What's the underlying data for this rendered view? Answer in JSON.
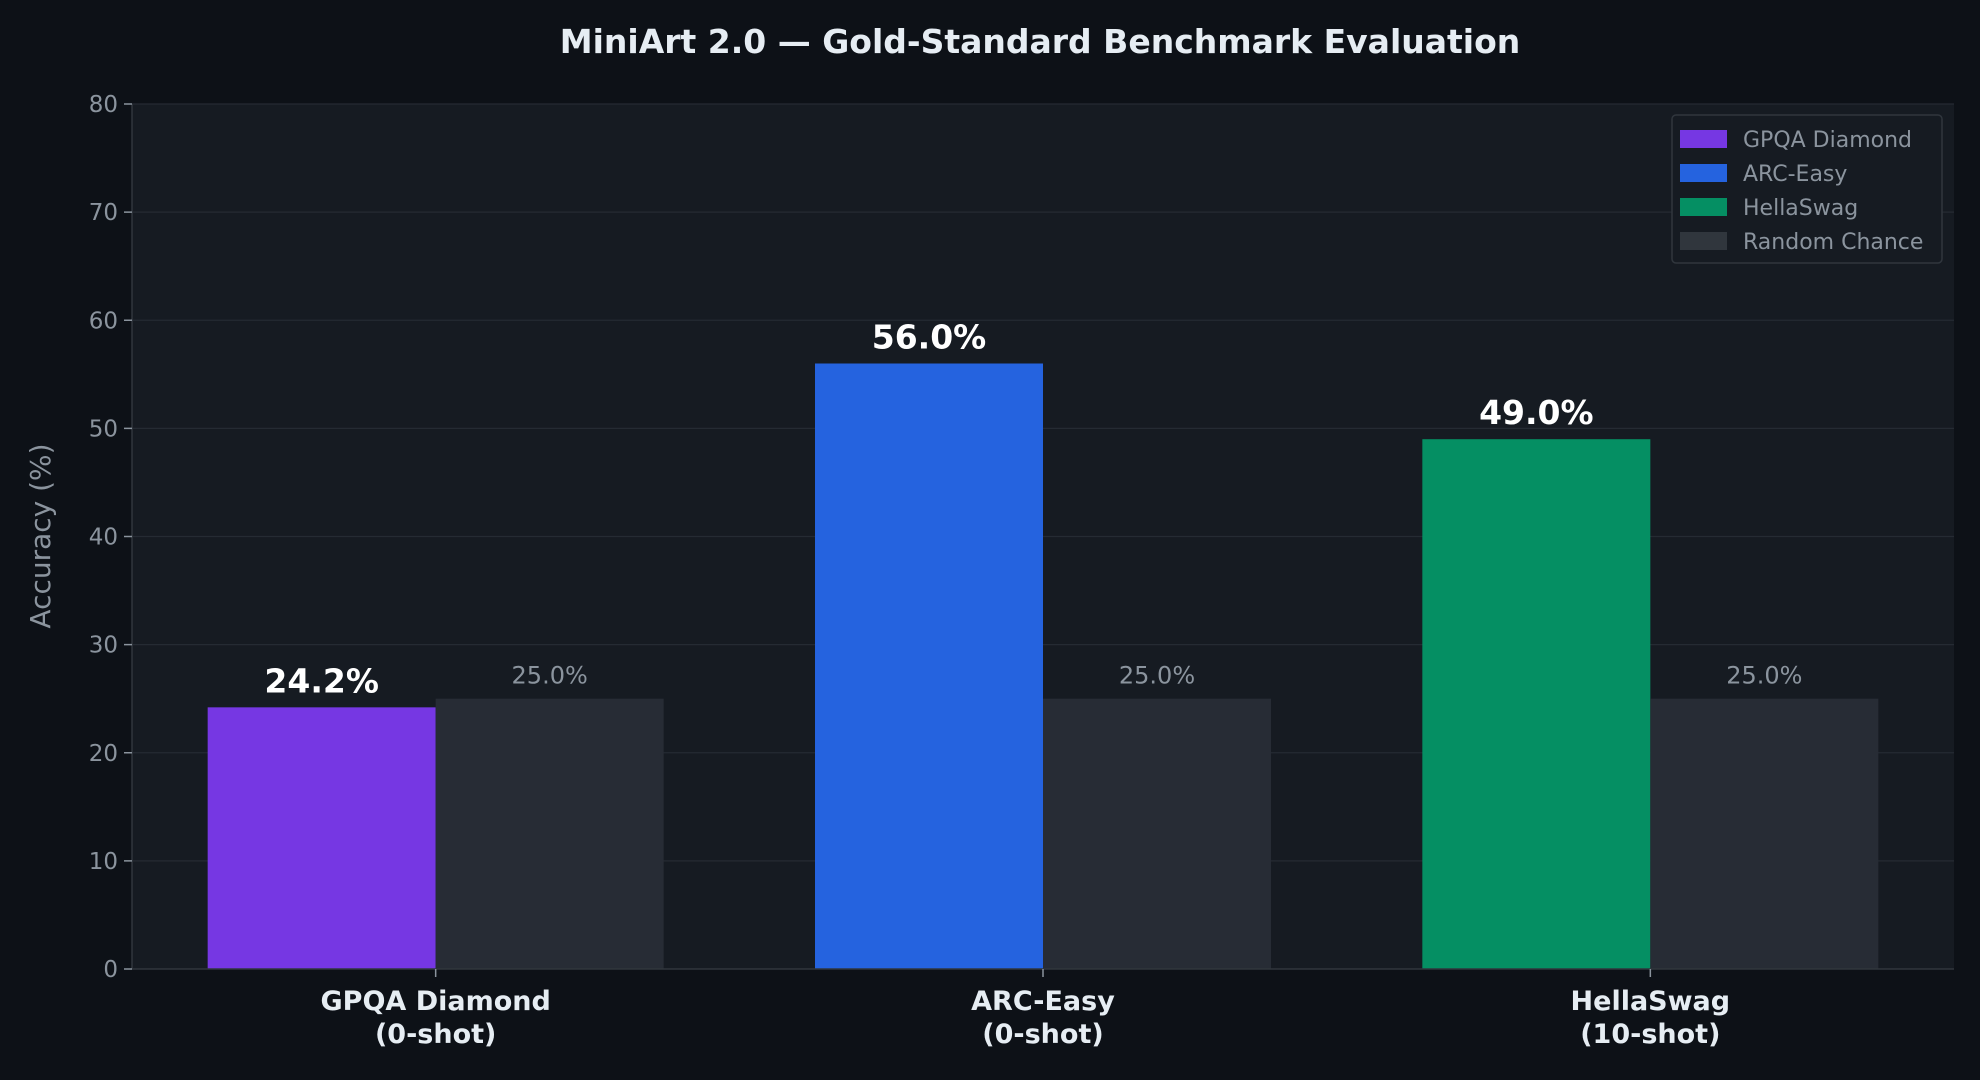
{
  "chart_data": {
    "type": "bar",
    "title": "MiniArt 2.0 — Gold-Standard Benchmark Evaluation",
    "ylabel": "Accuracy (%)",
    "xlabel": "",
    "ylim": [
      0,
      80
    ],
    "yticks": [
      0,
      10,
      20,
      30,
      40,
      50,
      60,
      70,
      80
    ],
    "grid": true,
    "legend_position": "top-right",
    "categories": [
      {
        "line1": "GPQA Diamond",
        "line2": "(0-shot)"
      },
      {
        "line1": "ARC-Easy",
        "line2": "(0-shot)"
      },
      {
        "line1": "HellaSwag",
        "line2": "(10-shot)"
      }
    ],
    "model_scores": [
      {
        "value": 24.2,
        "label": "24.2%",
        "color": "#7637e3"
      },
      {
        "value": 56.0,
        "label": "56.0%",
        "color": "#2563df"
      },
      {
        "value": 49.0,
        "label": "49.0%",
        "color": "#058f63"
      }
    ],
    "random_chance": [
      {
        "value": 25.0,
        "label": "25.0%"
      },
      {
        "value": 25.0,
        "label": "25.0%"
      },
      {
        "value": 25.0,
        "label": "25.0%"
      }
    ],
    "random_color": "#272c35",
    "legend": [
      {
        "label": "GPQA Diamond",
        "color": "#7637e3"
      },
      {
        "label": "ARC-Easy",
        "color": "#2563df"
      },
      {
        "label": "HellaSwag",
        "color": "#058f63"
      },
      {
        "label": "Random Chance",
        "color": "#30363d"
      }
    ]
  }
}
